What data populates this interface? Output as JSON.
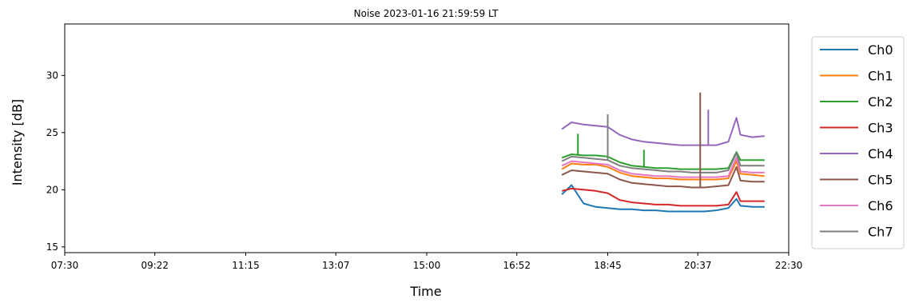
{
  "chart_data": {
    "type": "line",
    "title": "Noise 2023-01-16 21:59:59 LT",
    "xlabel": "Time",
    "ylabel": "Intensity [dB]",
    "xlim": [
      "07:30",
      "22:30"
    ],
    "ylim": [
      14.5,
      34.5
    ],
    "x_ticks": [
      "07:30",
      "09:22",
      "11:15",
      "13:07",
      "15:00",
      "16:52",
      "18:45",
      "20:37",
      "22:30"
    ],
    "y_ticks": [
      15,
      20,
      25,
      30
    ],
    "grid": false,
    "legend_position": "outside-right-top",
    "series": [
      {
        "name": "Ch0",
        "color": "#1f77b4",
        "x": [
          "17:48",
          "18:00",
          "18:15",
          "18:30",
          "18:45",
          "19:00",
          "19:15",
          "19:30",
          "19:45",
          "20:00",
          "20:15",
          "20:30",
          "20:45",
          "21:00",
          "21:15",
          "21:25",
          "21:30",
          "21:45",
          "22:00"
        ],
        "y": [
          19.6,
          20.4,
          18.8,
          18.5,
          18.4,
          18.3,
          18.3,
          18.2,
          18.2,
          18.1,
          18.1,
          18.1,
          18.1,
          18.2,
          18.4,
          19.2,
          18.6,
          18.5,
          18.5
        ]
      },
      {
        "name": "Ch1",
        "color": "#ff7f0e",
        "x": [
          "17:48",
          "18:00",
          "18:15",
          "18:30",
          "18:45",
          "19:00",
          "19:15",
          "19:30",
          "19:45",
          "20:00",
          "20:15",
          "20:30",
          "20:45",
          "21:00",
          "21:15",
          "21:25",
          "21:30",
          "21:45",
          "22:00"
        ],
        "y": [
          21.8,
          22.3,
          22.2,
          22.2,
          22.0,
          21.5,
          21.2,
          21.1,
          21.0,
          21.0,
          20.9,
          20.9,
          20.9,
          20.9,
          21.0,
          22.5,
          21.4,
          21.3,
          21.2
        ]
      },
      {
        "name": "Ch2",
        "color": "#2ca02c",
        "x": [
          "17:48",
          "18:00",
          "18:15",
          "18:30",
          "18:45",
          "19:00",
          "19:15",
          "19:30",
          "19:45",
          "20:00",
          "20:15",
          "20:30",
          "20:45",
          "21:00",
          "21:15",
          "21:25",
          "21:30",
          "21:45",
          "22:00"
        ],
        "y": [
          22.8,
          23.1,
          23.0,
          23.0,
          22.9,
          22.4,
          22.1,
          22.0,
          21.9,
          21.9,
          21.8,
          21.8,
          21.8,
          21.8,
          21.9,
          23.3,
          22.6,
          22.6,
          22.6
        ]
      },
      {
        "name": "Ch3",
        "color": "#d62728",
        "x": [
          "17:48",
          "18:00",
          "18:15",
          "18:30",
          "18:45",
          "19:00",
          "19:15",
          "19:30",
          "19:45",
          "20:00",
          "20:15",
          "20:30",
          "20:45",
          "21:00",
          "21:15",
          "21:25",
          "21:30",
          "21:45",
          "22:00"
        ],
        "y": [
          19.9,
          20.1,
          20.0,
          19.9,
          19.7,
          19.1,
          18.9,
          18.8,
          18.7,
          18.7,
          18.6,
          18.6,
          18.6,
          18.6,
          18.7,
          19.8,
          19.0,
          19.0,
          19.0
        ]
      },
      {
        "name": "Ch4",
        "color": "#9467bd",
        "x": [
          "17:48",
          "18:00",
          "18:15",
          "18:30",
          "18:45",
          "19:00",
          "19:15",
          "19:30",
          "19:45",
          "20:00",
          "20:15",
          "20:30",
          "20:45",
          "21:00",
          "21:15",
          "21:25",
          "21:30",
          "21:45",
          "22:00"
        ],
        "y": [
          25.3,
          25.9,
          25.7,
          25.6,
          25.5,
          24.8,
          24.4,
          24.2,
          24.1,
          24.0,
          23.9,
          23.9,
          23.9,
          23.9,
          24.2,
          26.3,
          24.8,
          24.6,
          24.7
        ]
      },
      {
        "name": "Ch5",
        "color": "#8c564b",
        "x": [
          "17:48",
          "18:00",
          "18:15",
          "18:30",
          "18:45",
          "19:00",
          "19:15",
          "19:30",
          "19:45",
          "20:00",
          "20:15",
          "20:30",
          "20:45",
          "21:00",
          "21:15",
          "21:25",
          "21:30",
          "21:45",
          "22:00"
        ],
        "y": [
          21.3,
          21.7,
          21.6,
          21.5,
          21.4,
          20.9,
          20.6,
          20.5,
          20.4,
          20.3,
          20.3,
          20.2,
          20.2,
          20.3,
          20.4,
          22.0,
          20.8,
          20.7,
          20.7
        ]
      },
      {
        "name": "Ch6",
        "color": "#e377c2",
        "x": [
          "17:48",
          "18:00",
          "18:15",
          "18:30",
          "18:45",
          "19:00",
          "19:15",
          "19:30",
          "19:45",
          "20:00",
          "20:15",
          "20:30",
          "20:45",
          "21:00",
          "21:15",
          "21:25",
          "21:30",
          "21:45",
          "22:00"
        ],
        "y": [
          22.1,
          22.5,
          22.4,
          22.3,
          22.2,
          21.7,
          21.4,
          21.3,
          21.2,
          21.2,
          21.1,
          21.1,
          21.1,
          21.1,
          21.2,
          22.8,
          21.6,
          21.5,
          21.5
        ]
      },
      {
        "name": "Ch7",
        "color": "#7f7f7f",
        "x": [
          "17:48",
          "18:00",
          "18:15",
          "18:30",
          "18:45",
          "19:00",
          "19:15",
          "19:30",
          "19:45",
          "20:00",
          "20:15",
          "20:30",
          "20:45",
          "21:00",
          "21:15",
          "21:25",
          "21:30",
          "21:45",
          "22:00"
        ],
        "y": [
          22.5,
          22.9,
          22.8,
          22.7,
          22.6,
          22.1,
          21.9,
          21.8,
          21.7,
          21.6,
          21.6,
          21.5,
          21.5,
          21.5,
          21.7,
          23.2,
          22.1,
          22.1,
          22.1
        ]
      }
    ],
    "spikes": [
      {
        "series": "Ch2",
        "x": "18:08",
        "y": 24.9
      },
      {
        "series": "Ch7",
        "x": "18:45",
        "y": 26.6
      },
      {
        "series": "Ch5",
        "x": "20:40",
        "y": 28.5
      },
      {
        "series": "Ch4",
        "x": "20:50",
        "y": 27.0
      },
      {
        "series": "Ch2",
        "x": "19:30",
        "y": 23.5
      }
    ]
  }
}
